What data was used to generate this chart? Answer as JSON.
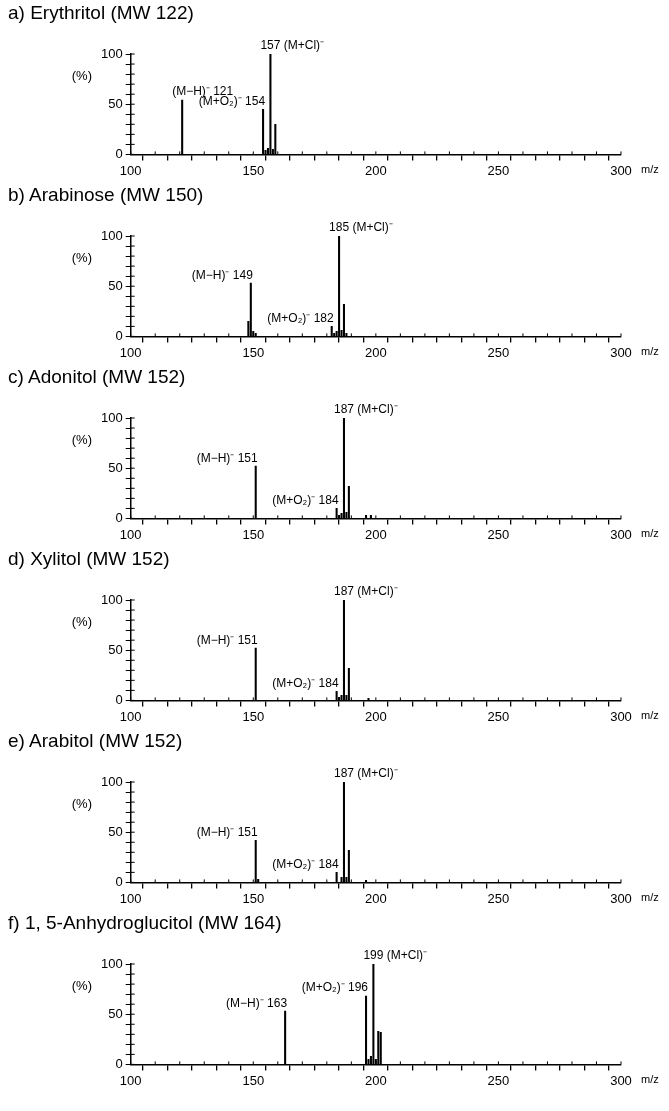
{
  "chart_data": [
    {
      "type": "bar",
      "title": "a) Erythritol (MW 122)",
      "ylabel": "(%)",
      "xlabel": "m/z",
      "xlim": [
        100,
        300
      ],
      "ylim": [
        0,
        100
      ],
      "xticks": [
        100,
        {
          "value": 110,
          "label": null
        },
        {
          "value": 120,
          "label": null
        },
        {
          "value": 130,
          "label": null
        },
        {
          "value": 140,
          "label": null
        },
        150,
        {
          "value": 160,
          "label": null
        },
        {
          "value": 170,
          "label": null
        },
        {
          "value": 180,
          "label": null
        },
        {
          "value": 190,
          "label": null
        },
        200,
        {
          "value": 210,
          "label": null
        },
        {
          "value": 220,
          "label": null
        },
        {
          "value": 230,
          "label": null
        },
        {
          "value": 240,
          "label": null
        },
        250,
        {
          "value": 260,
          "label": null
        },
        {
          "value": 270,
          "label": null
        },
        {
          "value": 280,
          "label": null
        },
        {
          "value": 290,
          "label": null
        },
        300
      ],
      "yticks": [
        0,
        {
          "value": 10,
          "label": null
        },
        {
          "value": 20,
          "label": null
        },
        {
          "value": 30,
          "label": null
        },
        {
          "value": 40,
          "label": null
        },
        50,
        {
          "value": 60,
          "label": null
        },
        {
          "value": 70,
          "label": null
        },
        {
          "value": 80,
          "label": null
        },
        {
          "value": 90,
          "label": null
        },
        100
      ],
      "x": [
        121,
        154,
        155,
        156,
        157,
        158,
        159
      ],
      "series": [
        {
          "color": "#000000",
          "values": [
            54,
            45,
            4,
            6,
            100,
            5,
            30
          ]
        }
      ],
      "annotations": [
        {
          "text": "(M−H)⁻ 121",
          "x": 121,
          "y": 54
        },
        {
          "text": "(M+O₂)⁻ 154",
          "x": 154,
          "y": 45
        },
        {
          "text": "157 (M+Cl)⁻",
          "x": 157,
          "y": 100
        }
      ]
    },
    {
      "type": "bar",
      "title": "b) Arabinose (MW 150)",
      "ylabel": "(%)",
      "xlabel": "m/z",
      "xlim": [
        100,
        300
      ],
      "ylim": [
        0,
        100
      ],
      "xticks": [
        100,
        {
          "value": 110,
          "label": null
        },
        {
          "value": 120,
          "label": null
        },
        {
          "value": 130,
          "label": null
        },
        {
          "value": 140,
          "label": null
        },
        150,
        {
          "value": 160,
          "label": null
        },
        {
          "value": 170,
          "label": null
        },
        {
          "value": 180,
          "label": null
        },
        {
          "value": 190,
          "label": null
        },
        200,
        {
          "value": 210,
          "label": null
        },
        {
          "value": 220,
          "label": null
        },
        {
          "value": 230,
          "label": null
        },
        {
          "value": 240,
          "label": null
        },
        250,
        {
          "value": 260,
          "label": null
        },
        {
          "value": 270,
          "label": null
        },
        {
          "value": 280,
          "label": null
        },
        {
          "value": 290,
          "label": null
        },
        300
      ],
      "yticks": [
        0,
        {
          "value": 10,
          "label": null
        },
        {
          "value": 20,
          "label": null
        },
        {
          "value": 30,
          "label": null
        },
        {
          "value": 40,
          "label": null
        },
        50,
        {
          "value": 60,
          "label": null
        },
        {
          "value": 70,
          "label": null
        },
        {
          "value": 80,
          "label": null
        },
        {
          "value": 90,
          "label": null
        },
        100
      ],
      "x": [
        148,
        149,
        150,
        151,
        182,
        183,
        184,
        185,
        186,
        187,
        188
      ],
      "series": [
        {
          "color": "#000000",
          "values": [
            15,
            53,
            5,
            3,
            10,
            3,
            5,
            100,
            6,
            32,
            3
          ]
        }
      ],
      "annotations": [
        {
          "text": "(M−H)⁻ 149",
          "x": 149,
          "y": 53
        },
        {
          "text": "(M+O₂)⁻ 182",
          "x": 182,
          "y": 10
        },
        {
          "text": "185 (M+Cl)⁻",
          "x": 185,
          "y": 100
        }
      ]
    },
    {
      "type": "bar",
      "title": "c) Adonitol (MW 152)",
      "ylabel": "(%)",
      "xlabel": "m/z",
      "xlim": [
        100,
        300
      ],
      "ylim": [
        0,
        100
      ],
      "xticks": [
        100,
        {
          "value": 110,
          "label": null
        },
        {
          "value": 120,
          "label": null
        },
        {
          "value": 130,
          "label": null
        },
        {
          "value": 140,
          "label": null
        },
        150,
        {
          "value": 160,
          "label": null
        },
        {
          "value": 170,
          "label": null
        },
        {
          "value": 180,
          "label": null
        },
        {
          "value": 190,
          "label": null
        },
        200,
        {
          "value": 210,
          "label": null
        },
        {
          "value": 220,
          "label": null
        },
        {
          "value": 230,
          "label": null
        },
        {
          "value": 240,
          "label": null
        },
        250,
        {
          "value": 260,
          "label": null
        },
        {
          "value": 270,
          "label": null
        },
        {
          "value": 280,
          "label": null
        },
        {
          "value": 290,
          "label": null
        },
        300
      ],
      "yticks": [
        0,
        {
          "value": 10,
          "label": null
        },
        {
          "value": 20,
          "label": null
        },
        {
          "value": 30,
          "label": null
        },
        {
          "value": 40,
          "label": null
        },
        50,
        {
          "value": 60,
          "label": null
        },
        {
          "value": 70,
          "label": null
        },
        {
          "value": 80,
          "label": null
        },
        {
          "value": 90,
          "label": null
        },
        100
      ],
      "x": [
        151,
        184,
        185,
        186,
        187,
        188,
        189,
        196,
        198
      ],
      "series": [
        {
          "color": "#000000",
          "values": [
            52,
            10,
            3,
            5,
            100,
            6,
            32,
            3,
            3
          ]
        }
      ],
      "annotations": [
        {
          "text": "(M−H)⁻ 151",
          "x": 151,
          "y": 52
        },
        {
          "text": "(M+O₂)⁻ 184",
          "x": 184,
          "y": 10
        },
        {
          "text": "187 (M+Cl)⁻",
          "x": 187,
          "y": 100
        }
      ]
    },
    {
      "type": "bar",
      "title": "d) Xylitol (MW 152)",
      "ylabel": "(%)",
      "xlabel": "m/z",
      "xlim": [
        100,
        300
      ],
      "ylim": [
        0,
        100
      ],
      "xticks": [
        100,
        {
          "value": 110,
          "label": null
        },
        {
          "value": 120,
          "label": null
        },
        {
          "value": 130,
          "label": null
        },
        {
          "value": 140,
          "label": null
        },
        150,
        {
          "value": 160,
          "label": null
        },
        {
          "value": 170,
          "label": null
        },
        {
          "value": 180,
          "label": null
        },
        {
          "value": 190,
          "label": null
        },
        200,
        {
          "value": 210,
          "label": null
        },
        {
          "value": 220,
          "label": null
        },
        {
          "value": 230,
          "label": null
        },
        {
          "value": 240,
          "label": null
        },
        250,
        {
          "value": 260,
          "label": null
        },
        {
          "value": 270,
          "label": null
        },
        {
          "value": 280,
          "label": null
        },
        {
          "value": 290,
          "label": null
        },
        300
      ],
      "yticks": [
        0,
        {
          "value": 10,
          "label": null
        },
        {
          "value": 20,
          "label": null
        },
        {
          "value": 30,
          "label": null
        },
        {
          "value": 40,
          "label": null
        },
        50,
        {
          "value": 60,
          "label": null
        },
        {
          "value": 70,
          "label": null
        },
        {
          "value": 80,
          "label": null
        },
        {
          "value": 90,
          "label": null
        },
        100
      ],
      "x": [
        151,
        184,
        185,
        186,
        187,
        188,
        189,
        197
      ],
      "series": [
        {
          "color": "#000000",
          "values": [
            52,
            9,
            3,
            5,
            100,
            5,
            32,
            2
          ]
        }
      ],
      "annotations": [
        {
          "text": "(M−H)⁻ 151",
          "x": 151,
          "y": 52
        },
        {
          "text": "(M+O₂)⁻ 184",
          "x": 184,
          "y": 9
        },
        {
          "text": "187 (M+Cl)⁻",
          "x": 187,
          "y": 100
        }
      ]
    },
    {
      "type": "bar",
      "title": "e) Arabitol (MW 152)",
      "ylabel": "(%)",
      "xlabel": "m/z",
      "xlim": [
        100,
        300
      ],
      "ylim": [
        0,
        100
      ],
      "xticks": [
        100,
        {
          "value": 110,
          "label": null
        },
        {
          "value": 120,
          "label": null
        },
        {
          "value": 130,
          "label": null
        },
        {
          "value": 140,
          "label": null
        },
        150,
        {
          "value": 160,
          "label": null
        },
        {
          "value": 170,
          "label": null
        },
        {
          "value": 180,
          "label": null
        },
        {
          "value": 190,
          "label": null
        },
        200,
        {
          "value": 210,
          "label": null
        },
        {
          "value": 220,
          "label": null
        },
        {
          "value": 230,
          "label": null
        },
        {
          "value": 240,
          "label": null
        },
        250,
        {
          "value": 260,
          "label": null
        },
        {
          "value": 270,
          "label": null
        },
        {
          "value": 280,
          "label": null
        },
        {
          "value": 290,
          "label": null
        },
        300
      ],
      "yticks": [
        0,
        {
          "value": 10,
          "label": null
        },
        {
          "value": 20,
          "label": null
        },
        {
          "value": 30,
          "label": null
        },
        {
          "value": 40,
          "label": null
        },
        50,
        {
          "value": 60,
          "label": null
        },
        {
          "value": 70,
          "label": null
        },
        {
          "value": 80,
          "label": null
        },
        {
          "value": 90,
          "label": null
        },
        100
      ],
      "x": [
        151,
        152,
        184,
        186,
        187,
        188,
        189,
        196
      ],
      "series": [
        {
          "color": "#000000",
          "values": [
            42,
            3,
            10,
            5,
            100,
            5,
            32,
            2
          ]
        }
      ],
      "annotations": [
        {
          "text": "(M−H)⁻ 151",
          "x": 151,
          "y": 42
        },
        {
          "text": "(M+O₂)⁻ 184",
          "x": 184,
          "y": 10
        },
        {
          "text": "187 (M+Cl)⁻",
          "x": 187,
          "y": 100
        }
      ]
    },
    {
      "type": "bar",
      "title": "f) 1, 5-Anhydroglucitol (MW 164)",
      "ylabel": "(%)",
      "xlabel": "m/z",
      "xlim": [
        100,
        300
      ],
      "ylim": [
        0,
        100
      ],
      "xticks": [
        100,
        {
          "value": 110,
          "label": null
        },
        {
          "value": 120,
          "label": null
        },
        {
          "value": 130,
          "label": null
        },
        {
          "value": 140,
          "label": null
        },
        150,
        {
          "value": 160,
          "label": null
        },
        {
          "value": 170,
          "label": null
        },
        {
          "value": 180,
          "label": null
        },
        {
          "value": 190,
          "label": null
        },
        200,
        {
          "value": 210,
          "label": null
        },
        {
          "value": 220,
          "label": null
        },
        {
          "value": 230,
          "label": null
        },
        {
          "value": 240,
          "label": null
        },
        250,
        {
          "value": 260,
          "label": null
        },
        {
          "value": 270,
          "label": null
        },
        {
          "value": 280,
          "label": null
        },
        {
          "value": 290,
          "label": null
        },
        300
      ],
      "yticks": [
        0,
        {
          "value": 10,
          "label": null
        },
        {
          "value": 20,
          "label": null
        },
        {
          "value": 30,
          "label": null
        },
        {
          "value": 40,
          "label": null
        },
        50,
        {
          "value": 60,
          "label": null
        },
        {
          "value": 70,
          "label": null
        },
        {
          "value": 80,
          "label": null
        },
        {
          "value": 90,
          "label": null
        },
        100
      ],
      "x": [
        163,
        196,
        197,
        198,
        199,
        200,
        201,
        202
      ],
      "series": [
        {
          "color": "#000000",
          "values": [
            53,
            68,
            5,
            8,
            100,
            5,
            33,
            32
          ]
        }
      ],
      "annotations": [
        {
          "text": "(M−H)⁻ 163",
          "x": 163,
          "y": 53
        },
        {
          "text": "(M+O₂)⁻ 196",
          "x": 196,
          "y": 68
        },
        {
          "text": "199 (M+Cl)⁻",
          "x": 199,
          "y": 100
        }
      ]
    }
  ]
}
